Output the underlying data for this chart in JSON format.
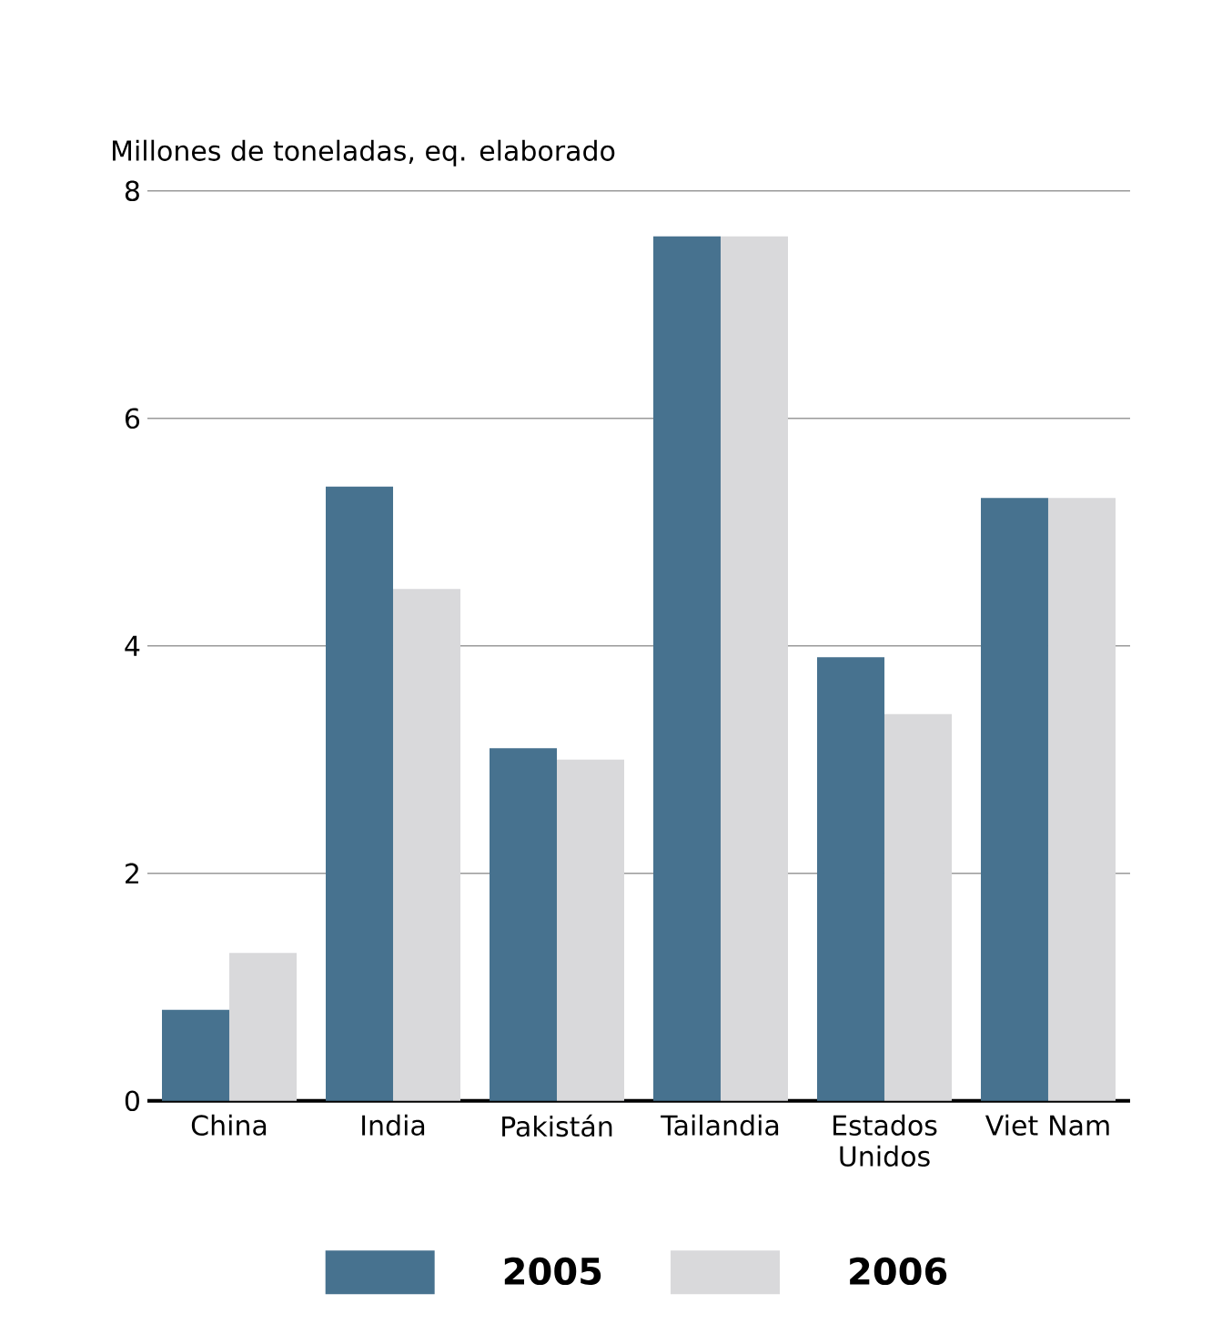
{
  "chart_data": {
    "type": "bar",
    "ylabel": "Millones de toneladas, eq. elaborado",
    "categories": [
      "China",
      "India",
      "Pakistán",
      "Tailandia",
      "Estados Unidos",
      "Viet Nam"
    ],
    "series": [
      {
        "name": "2005",
        "color": "#47728f",
        "values": [
          0.8,
          5.4,
          3.1,
          7.6,
          3.9,
          5.3
        ]
      },
      {
        "name": "2006",
        "color": "#d9d9db",
        "values": [
          1.3,
          4.5,
          3.0,
          7.6,
          3.4,
          5.3
        ]
      }
    ],
    "ylim": [
      0,
      8
    ],
    "yticks": [
      0,
      2,
      4,
      6,
      8
    ],
    "grid": "y",
    "legend": "bottom"
  }
}
